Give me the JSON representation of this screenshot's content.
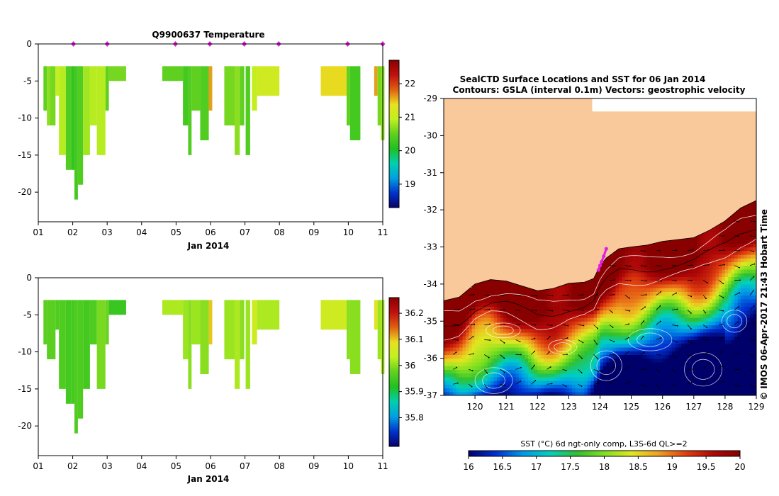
{
  "colors": {
    "land": "#f9c99c",
    "background": "#ffffff",
    "marker": "#e020e0",
    "temp_cmap": [
      "#08006a",
      "#0033cc",
      "#00a0e0",
      "#00d0b0",
      "#20c020",
      "#60d020",
      "#c0f020",
      "#e8e020",
      "#e06010",
      "#c01010",
      "#8a0000"
    ],
    "sal_cmap": [
      "#08006a",
      "#0033cc",
      "#00a0e0",
      "#00d0b0",
      "#20c020",
      "#60d020",
      "#c0f020",
      "#e8e020",
      "#e06010",
      "#c01010",
      "#8a0000"
    ],
    "sst_cmap": [
      "#00006a",
      "#0030d0",
      "#0098e8",
      "#00d0c0",
      "#30c030",
      "#80e020",
      "#e0e820",
      "#f0a020",
      "#e04010",
      "#b00808",
      "#880000"
    ]
  },
  "chart_data": [
    {
      "type": "bar",
      "name": "temperature-profile",
      "title": "Q9900637  Temperature",
      "xlabel": "Jan 2014",
      "ylabel": "",
      "xlim": [
        1,
        11
      ],
      "ylim": [
        -24,
        0
      ],
      "xticks": [
        "01",
        "02",
        "03",
        "04",
        "05",
        "06",
        "07",
        "08",
        "09",
        "10",
        "11"
      ],
      "yticks": [
        "0",
        "-5",
        "-10",
        "-15",
        "-20"
      ],
      "ytick_values": [
        0,
        -5,
        -10,
        -15,
        -20
      ],
      "markers_x": [
        2.02,
        3.0,
        4.98,
        5.98,
        6.98,
        7.98,
        9.98,
        11.0
      ],
      "colorbar": {
        "min": 18.3,
        "max": 22.7,
        "ticks": [
          "19",
          "20",
          "21",
          "22"
        ],
        "tick_values": [
          19,
          20,
          21,
          22
        ]
      },
      "profiles": [
        {
          "x0": 1.15,
          "x1": 1.25,
          "depth": 9,
          "value": 20.5
        },
        {
          "x0": 1.25,
          "x1": 1.35,
          "depth": 11,
          "value": 20.7
        },
        {
          "x0": 1.35,
          "x1": 1.5,
          "depth": 11,
          "value": 20.6
        },
        {
          "x0": 1.5,
          "x1": 1.6,
          "depth": 7,
          "value": 21.0
        },
        {
          "x0": 1.6,
          "x1": 1.8,
          "depth": 15,
          "value": 20.9
        },
        {
          "x0": 1.8,
          "x1": 1.95,
          "depth": 17,
          "value": 20.4
        },
        {
          "x0": 1.95,
          "x1": 2.05,
          "depth": 17,
          "value": 20.2
        },
        {
          "x0": 2.05,
          "x1": 2.15,
          "depth": 21,
          "value": 20.3
        },
        {
          "x0": 2.15,
          "x1": 2.3,
          "depth": 19,
          "value": 20.4
        },
        {
          "x0": 2.3,
          "x1": 2.5,
          "depth": 15,
          "value": 20.8
        },
        {
          "x0": 2.5,
          "x1": 2.7,
          "depth": 11,
          "value": 20.9
        },
        {
          "x0": 2.7,
          "x1": 2.95,
          "depth": 15,
          "value": 20.9
        },
        {
          "x0": 2.95,
          "x1": 3.05,
          "depth": 9,
          "value": 20.5
        },
        {
          "x0": 3.05,
          "x1": 3.55,
          "depth": 5,
          "value": 20.6
        },
        {
          "x0": 4.6,
          "x1": 5.2,
          "depth": 5,
          "value": 20.5
        },
        {
          "x0": 5.2,
          "x1": 5.35,
          "depth": 11,
          "value": 20.3
        },
        {
          "x0": 5.35,
          "x1": 5.45,
          "depth": 15,
          "value": 20.4
        },
        {
          "x0": 5.45,
          "x1": 5.7,
          "depth": 9,
          "value": 20.5
        },
        {
          "x0": 5.7,
          "x1": 5.95,
          "depth": 13,
          "value": 20.4
        },
        {
          "x0": 5.95,
          "x1": 6.05,
          "depth": 9,
          "value": 21.6
        },
        {
          "x0": 6.4,
          "x1": 6.7,
          "depth": 11,
          "value": 20.6
        },
        {
          "x0": 6.7,
          "x1": 6.85,
          "depth": 15,
          "value": 20.7
        },
        {
          "x0": 6.85,
          "x1": 6.98,
          "depth": 11,
          "value": 20.5
        },
        {
          "x0": 7.02,
          "x1": 7.15,
          "depth": 15,
          "value": 20.4
        },
        {
          "x0": 7.2,
          "x1": 7.35,
          "depth": 9,
          "value": 21.0
        },
        {
          "x0": 7.35,
          "x1": 8.0,
          "depth": 7,
          "value": 21.1
        },
        {
          "x0": 9.2,
          "x1": 9.95,
          "depth": 7,
          "value": 21.4
        },
        {
          "x0": 9.95,
          "x1": 10.05,
          "depth": 11,
          "value": 20.5
        },
        {
          "x0": 10.05,
          "x1": 10.35,
          "depth": 13,
          "value": 20.3
        },
        {
          "x0": 10.75,
          "x1": 10.85,
          "depth": 7,
          "value": 21.6
        },
        {
          "x0": 10.85,
          "x1": 10.95,
          "depth": 11,
          "value": 20.6
        },
        {
          "x0": 10.95,
          "x1": 11.05,
          "depth": 13,
          "value": 20.7
        }
      ]
    },
    {
      "type": "bar",
      "name": "salinity-profile",
      "title": "",
      "xlabel": "Jan 2014",
      "ylabel": "",
      "xlim": [
        1,
        11
      ],
      "ylim": [
        -24,
        0
      ],
      "xticks": [
        "01",
        "02",
        "03",
        "04",
        "05",
        "06",
        "07",
        "08",
        "09",
        "10",
        "11"
      ],
      "yticks": [
        "0",
        "-5",
        "-10",
        "-15",
        "-20"
      ],
      "ytick_values": [
        0,
        -5,
        -10,
        -15,
        -20
      ],
      "colorbar": {
        "min": 35.69,
        "max": 36.26,
        "ticks": [
          "35.8",
          "35.9",
          "36",
          "36.1",
          "36.2"
        ],
        "tick_values": [
          35.8,
          35.9,
          36.0,
          36.1,
          36.2
        ]
      },
      "profiles": [
        {
          "x0": 1.15,
          "x1": 1.25,
          "depth": 9,
          "value": 35.97
        },
        {
          "x0": 1.25,
          "x1": 1.35,
          "depth": 11,
          "value": 35.97
        },
        {
          "x0": 1.35,
          "x1": 1.5,
          "depth": 11,
          "value": 35.97
        },
        {
          "x0": 1.5,
          "x1": 1.6,
          "depth": 7,
          "value": 35.96
        },
        {
          "x0": 1.6,
          "x1": 1.8,
          "depth": 15,
          "value": 35.96
        },
        {
          "x0": 1.8,
          "x1": 1.95,
          "depth": 17,
          "value": 35.95
        },
        {
          "x0": 1.95,
          "x1": 2.05,
          "depth": 17,
          "value": 35.95
        },
        {
          "x0": 2.05,
          "x1": 2.15,
          "depth": 21,
          "value": 35.96
        },
        {
          "x0": 2.15,
          "x1": 2.3,
          "depth": 19,
          "value": 35.96
        },
        {
          "x0": 2.3,
          "x1": 2.5,
          "depth": 15,
          "value": 35.95
        },
        {
          "x0": 2.5,
          "x1": 2.7,
          "depth": 9,
          "value": 35.96
        },
        {
          "x0": 2.7,
          "x1": 2.95,
          "depth": 15,
          "value": 35.99
        },
        {
          "x0": 2.95,
          "x1": 3.05,
          "depth": 9,
          "value": 35.98
        },
        {
          "x0": 3.05,
          "x1": 3.55,
          "depth": 5,
          "value": 35.94
        },
        {
          "x0": 4.6,
          "x1": 5.2,
          "depth": 5,
          "value": 36.02
        },
        {
          "x0": 5.2,
          "x1": 5.35,
          "depth": 11,
          "value": 36.01
        },
        {
          "x0": 5.35,
          "x1": 5.45,
          "depth": 15,
          "value": 36.0
        },
        {
          "x0": 5.45,
          "x1": 5.7,
          "depth": 9,
          "value": 36.01
        },
        {
          "x0": 5.7,
          "x1": 5.95,
          "depth": 13,
          "value": 36.0
        },
        {
          "x0": 5.95,
          "x1": 6.05,
          "depth": 9,
          "value": 36.1
        },
        {
          "x0": 6.4,
          "x1": 6.7,
          "depth": 11,
          "value": 36.01
        },
        {
          "x0": 6.7,
          "x1": 6.85,
          "depth": 15,
          "value": 36.02
        },
        {
          "x0": 6.85,
          "x1": 6.98,
          "depth": 11,
          "value": 36.0
        },
        {
          "x0": 7.02,
          "x1": 7.15,
          "depth": 15,
          "value": 36.01
        },
        {
          "x0": 7.2,
          "x1": 7.35,
          "depth": 9,
          "value": 36.05
        },
        {
          "x0": 7.35,
          "x1": 8.0,
          "depth": 7,
          "value": 36.02
        },
        {
          "x0": 9.2,
          "x1": 9.95,
          "depth": 7,
          "value": 36.05
        },
        {
          "x0": 9.95,
          "x1": 10.05,
          "depth": 11,
          "value": 36.0
        },
        {
          "x0": 10.05,
          "x1": 10.35,
          "depth": 13,
          "value": 36.0
        },
        {
          "x0": 10.75,
          "x1": 10.85,
          "depth": 7,
          "value": 36.08
        },
        {
          "x0": 10.85,
          "x1": 10.95,
          "depth": 11,
          "value": 36.01
        },
        {
          "x0": 10.95,
          "x1": 11.05,
          "depth": 13,
          "value": 36.02
        }
      ]
    },
    {
      "type": "heatmap",
      "name": "sst-map",
      "title": "SealCTD Surface Locations and SST for 06 Jan 2014",
      "subtitle": "Contours: GSLA (interval 0.1m) Vectors: geostrophic velocity",
      "xlabel": "",
      "ylabel": "",
      "xlim": [
        119,
        129
      ],
      "ylim": [
        -37,
        -29
      ],
      "xticks": [
        "120",
        "121",
        "122",
        "123",
        "124",
        "125",
        "126",
        "127",
        "128",
        "129"
      ],
      "xtick_values": [
        120,
        121,
        122,
        123,
        124,
        125,
        126,
        127,
        128,
        129
      ],
      "yticks": [
        "-29",
        "-30",
        "-31",
        "-32",
        "-33",
        "-34",
        "-35",
        "-36",
        "-37"
      ],
      "ytick_values": [
        -29,
        -30,
        -31,
        -32,
        -33,
        -34,
        -35,
        -36,
        -37
      ],
      "coast_lon": [
        119,
        119.5,
        120,
        120.5,
        121,
        121.5,
        122,
        122.5,
        123,
        123.5,
        123.8,
        124.0,
        124.2,
        124.6,
        125,
        125.5,
        126,
        126.5,
        127,
        127.5,
        128,
        128.5,
        129
      ],
      "coast_lat": [
        -34.45,
        -34.35,
        -34.0,
        -33.88,
        -33.92,
        -34.05,
        -34.18,
        -34.12,
        -33.98,
        -33.95,
        -33.85,
        -33.5,
        -33.3,
        -33.05,
        -33.0,
        -32.95,
        -32.85,
        -32.8,
        -32.75,
        -32.55,
        -32.3,
        -31.95,
        -31.75
      ],
      "data_gap_box": {
        "lon": [
          123.75,
          129
        ],
        "lat": [
          -29.35,
          -29
        ]
      },
      "seal_track": {
        "lon": [
          123.95,
          124.0,
          124.05,
          124.12,
          124.2
        ],
        "lat": [
          -33.62,
          -33.5,
          -33.4,
          -33.25,
          -33.05
        ]
      },
      "colorbar": {
        "label": "SST (°C) 6d ngt-only comp, L3S-6d QL>=2",
        "min": 16,
        "max": 20,
        "ticks": [
          "16",
          "16.5",
          "17",
          "17.5",
          "18",
          "18.5",
          "19",
          "19.5",
          "20"
        ],
        "tick_values": [
          16,
          16.5,
          17,
          17.5,
          18,
          18.5,
          19,
          19.5,
          20
        ]
      },
      "credit": "© IMOS 06-Apr-2017 21:43 Hobart Time"
    }
  ]
}
